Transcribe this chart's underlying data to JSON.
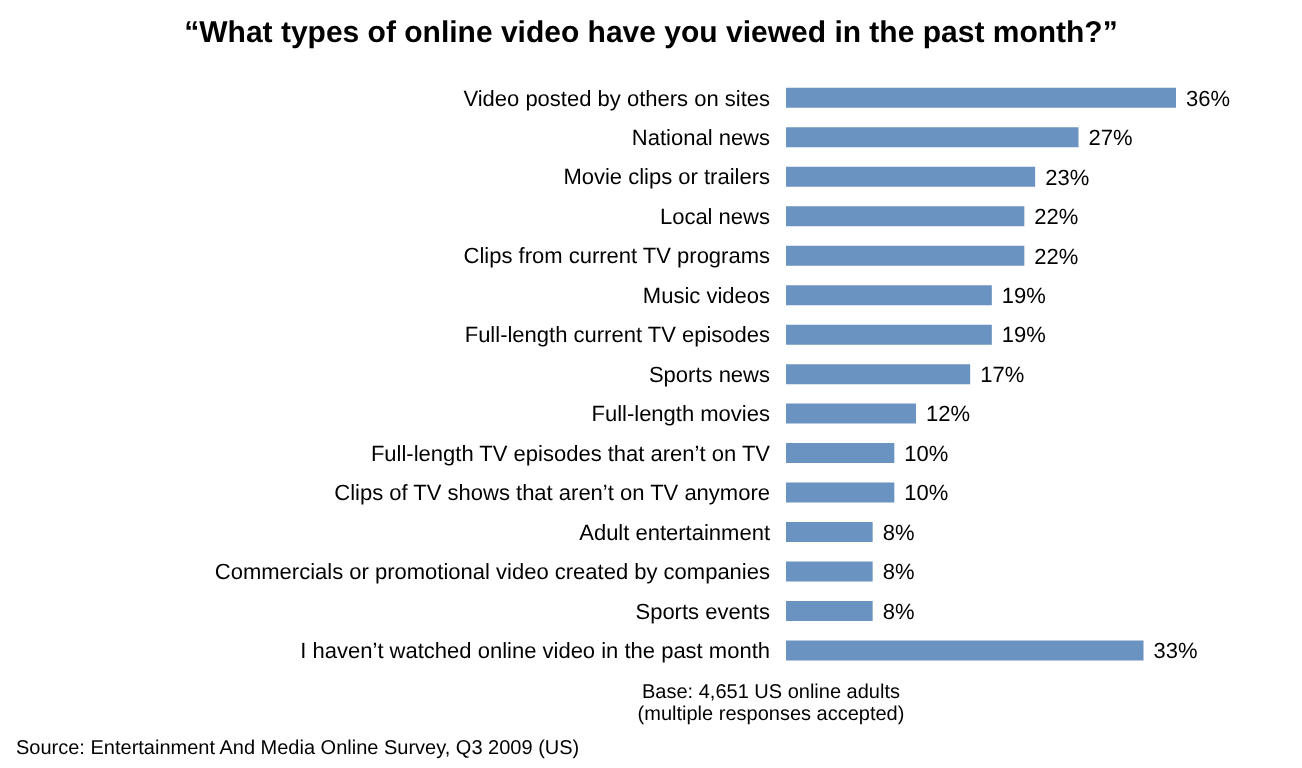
{
  "chart_data": {
    "type": "bar",
    "orientation": "horizontal",
    "title": "“What types of online video have you viewed in the past month?”",
    "categories": [
      "Video posted by others on sites",
      "National news",
      "Movie clips or trailers",
      "Local news",
      "Clips from current TV programs",
      "Music videos",
      "Full-length current TV episodes",
      "Sports news",
      "Full-length movies",
      "Full-length TV episodes that aren’t on TV",
      "Clips of TV shows that aren’t on TV anymore",
      "Adult entertainment",
      "Commercials or promotional video created by companies",
      "Sports events",
      "I haven’t watched online video in the past month"
    ],
    "values": [
      36,
      27,
      23,
      22,
      22,
      19,
      19,
      17,
      12,
      10,
      10,
      8,
      8,
      8,
      33
    ],
    "value_labels": [
      "36%",
      "27%",
      "23%",
      "22%",
      "22%",
      "19%",
      "19%",
      "17%",
      "12%",
      "10%",
      "10%",
      "8%",
      "8%",
      "8%",
      "33%"
    ],
    "color": "#6b93c1",
    "annotations": [
      "Base: 4,651 US online adults",
      "(multiple responses accepted)",
      "Source: Entertainment And Media Online Survey, Q3 2009 (US)"
    ]
  }
}
